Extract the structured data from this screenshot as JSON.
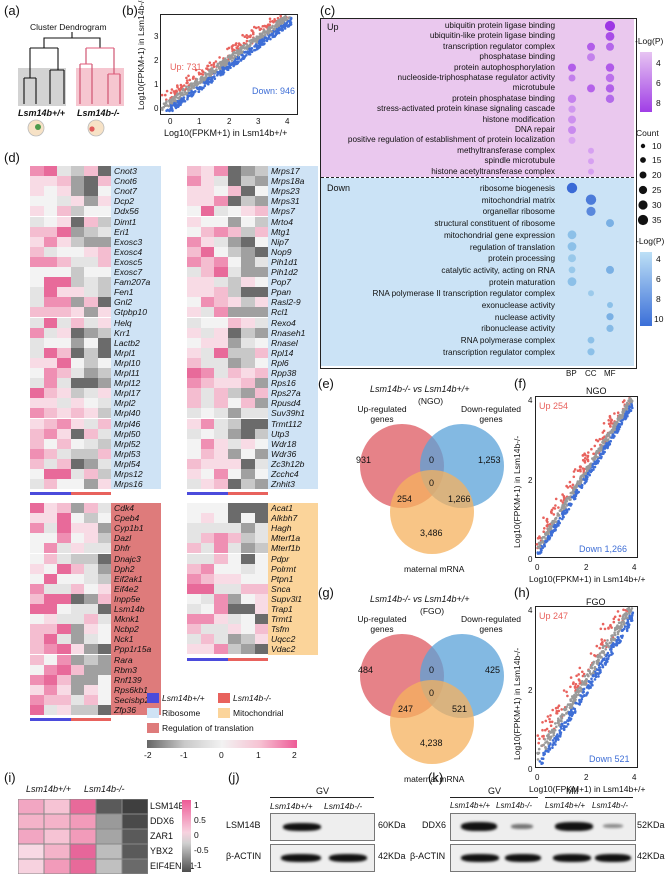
{
  "panels": {
    "a": {
      "label": "(a)",
      "title": "Cluster Dendrogram",
      "group_wt": "Lsm14b+/+",
      "group_ko": "Lsm14b-/-"
    },
    "b": {
      "label": "(b)",
      "ylabel": "Log10(FPKM+1) in Lsm14b-/-",
      "xlabel": "Log10(FPKM+1) in Lsm14b+/+",
      "up_label": "Up: 731",
      "down_label": "Down: 946",
      "ticks": [
        "0",
        "1",
        "2",
        "3",
        "4"
      ]
    },
    "c": {
      "label": "(c)",
      "up_title": "Up",
      "down_title": "Down",
      "up_terms": [
        "ubiquitin protein ligase binding",
        "ubiquitin-like protein ligase binding",
        "transcription regulator complex",
        "phosphatase binding",
        "protein autophosphorylation",
        "nucleoside-triphosphatase regulator activity",
        "microtubule",
        "protein phosphatase binding",
        "stress-activated protein kinase signaling cascade",
        "histone modification",
        "DNA repair",
        "positive regulation of establishment of protein localization",
        "methyltransferase complex",
        "spindle microtubule",
        "histone acetyltransferase complex"
      ],
      "down_terms": [
        "ribosome biogenesis",
        "mitochondrial matrix",
        "organellar ribosome",
        "structural constituent of ribosome",
        "mitochondrial gene expression",
        "regulation of translation",
        "protein processing",
        "catalytic activity, acting on RNA",
        "protein maturation",
        "RNA polymerase II transcription regulator complex",
        "exonuclease activity",
        "nuclease activity",
        "ribonuclease activity",
        "RNA polymerase complex",
        "transcription regulator complex"
      ],
      "x_categories": [
        "BP",
        "CC",
        "MF"
      ],
      "legend_up_title": "-Log(P)",
      "legend_up_ticks": [
        "4",
        "6",
        "8"
      ],
      "legend_count_title": "Count",
      "legend_count_values": [
        "10",
        "15",
        "20",
        "25",
        "30",
        "35"
      ],
      "legend_down_title": "-Log(P)",
      "legend_down_ticks": [
        "4",
        "6",
        "8",
        "10"
      ]
    },
    "d": {
      "label": "(d)",
      "genes_ribosome_left": [
        "Cnot3",
        "Cnot6",
        "Cnot7",
        "Dcp2",
        "Ddx56",
        "Dimt1",
        "Eri1",
        "Exosc3",
        "Exosc4",
        "Exosc5",
        "Exosc7",
        "Fam207a",
        "Fen1",
        "Gnl2",
        "Gtpbp10",
        "Helq",
        "Krr1",
        "Lactb2",
        "Mrpl1",
        "Mrpl10",
        "Mrpl11",
        "Mrpl12",
        "Mrpl17",
        "Mrpl2",
        "Mrpl40",
        "Mrpl46",
        "Mrpl50",
        "Mrpl52",
        "Mrpl53",
        "Mrpl54",
        "Mrps12",
        "Mrps16"
      ],
      "genes_ribosome_right": [
        "Mrps17",
        "Mrps18a",
        "Mrps23",
        "Mrps31",
        "Mrps7",
        "Mrto4",
        "Mtg1",
        "Nip7",
        "Nop9",
        "Pih1d1",
        "Pih1d2",
        "Pop7",
        "Ppan",
        "Rasl2-9",
        "Rcl1",
        "Rexo4",
        "Rnaseh1",
        "Rnasel",
        "Rpl14",
        "Rpl6",
        "Rpp38",
        "Rps16",
        "Rps27a",
        "Rpusd4",
        "Suv39h1",
        "Trmt112",
        "Utp3",
        "Wdr18",
        "Wdr36",
        "Zc3h12b",
        "Zcchc4",
        "Znhit3"
      ],
      "genes_translation": [
        "Cdk4",
        "Cpeb4",
        "Cyp1b1",
        "Dazl",
        "Dhfr",
        "Dnajc3",
        "Dph2",
        "Eif2ak1",
        "Eif4e2",
        "Inpp5e",
        "Lsm14b",
        "Mknk1",
        "Ncbp2",
        "Nck1",
        "Ppp1r15a",
        "Rara",
        "Rbm3",
        "Rnf139",
        "Rps6kb1",
        "Secisbp2l",
        "Zfp36"
      ],
      "genes_mito": [
        "Acat1",
        "Alkbh7",
        "Hagh",
        "Mterf1a",
        "Mterf1b",
        "Pdpr",
        "Polrmt",
        "Ptpn1",
        "Snca",
        "Supv3l1",
        "Trap1",
        "Trmt1",
        "Tsfm",
        "Uqcc2",
        "Vdac2"
      ],
      "legend": {
        "wt": "Lsm14b+/+",
        "ko": "Lsm14b-/-",
        "ribosome": "Ribosome",
        "mito": "Mitochondrial",
        "translation": "Regulation of translation",
        "scale": [
          "-2",
          "-1",
          "0",
          "1",
          "2"
        ]
      }
    },
    "e": {
      "label": "(e)",
      "title": "Lsm14b-/- vs Lsm14b+/+",
      "subtitle": "(NGO)",
      "up_label": "Up-regulated genes",
      "down_label": "Down-regulated genes",
      "maternal_label": "maternal mRNA",
      "values": {
        "up_only": "931",
        "up_down": "0",
        "down_only": "1,253",
        "up_mat": "254",
        "center": "0",
        "down_mat": "1,266",
        "mat_only": "3,486"
      }
    },
    "f": {
      "label": "(f)",
      "title": "NGO",
      "up_label": "Up 254",
      "down_label": "Down 1,266",
      "ylabel": "Log10(FPKM+1) in Lsm14b-/-",
      "xlabel": "Log10(FPKM+1) in Lsm14b+/+",
      "xticks": [
        "0",
        "2",
        "4"
      ],
      "yticks": [
        "0",
        "2",
        "4"
      ]
    },
    "g": {
      "label": "(g)",
      "title": "Lsm14b-/- vs Lsm14b+/+",
      "subtitle": "(FGO)",
      "up_label": "Up-regulated genes",
      "down_label": "Down-regulated genes",
      "maternal_label": "maternal mRNA",
      "values": {
        "up_only": "484",
        "up_down": "0",
        "down_only": "425",
        "up_mat": "247",
        "center": "0",
        "down_mat": "521",
        "mat_only": "4,238"
      }
    },
    "h": {
      "label": "(h)",
      "title": "FGO",
      "up_label": "Up 247",
      "down_label": "Down 521",
      "ylabel": "Log10(FPKM+1) in Lsm14b-/-",
      "xlabel": "Log10(FPKM+1) in Lsm14b+/+",
      "xticks": [
        "0",
        "2",
        "4"
      ],
      "yticks": [
        "0",
        "2",
        "4"
      ]
    },
    "i": {
      "label": "(i)",
      "col_wt": "Lsm14b+/+",
      "col_ko": "Lsm14b-/-",
      "rows": [
        "LSM14B",
        "DDX6",
        "ZAR1",
        "YBX2",
        "EIF4ENIF1"
      ],
      "scale": [
        "1",
        "0.5",
        "0",
        "-0.5",
        "-1"
      ]
    },
    "j": {
      "label": "(j)",
      "stage": "GV",
      "col_wt": "Lsm14b+/+",
      "col_ko": "Lsm14b-/-",
      "rows": [
        {
          "name": "LSM14B",
          "size": "60KDa"
        },
        {
          "name": "β-ACTIN",
          "size": "42KDa"
        }
      ]
    },
    "k": {
      "label": "(k)",
      "stage1": "GV",
      "stage2": "MII",
      "col_wt": "Lsm14b+/+",
      "col_ko": "Lsm14b-/-",
      "rows": [
        {
          "name": "DDX6",
          "size": "52KDa"
        },
        {
          "name": "β-ACTIN",
          "size": "42KDa"
        }
      ]
    }
  },
  "colors": {
    "up_red": "#e8625d",
    "down_blue": "#3e6ed6",
    "ribosome_bg": "#cfe3f5",
    "mito_bg": "#fbd49a",
    "translation_bg": "#de7b7b",
    "wt_bar": "#4b4bdc",
    "ko_bar": "#e8625d",
    "go_up_bg": "#eac8ee",
    "go_down_bg": "#c9e2f5"
  }
}
